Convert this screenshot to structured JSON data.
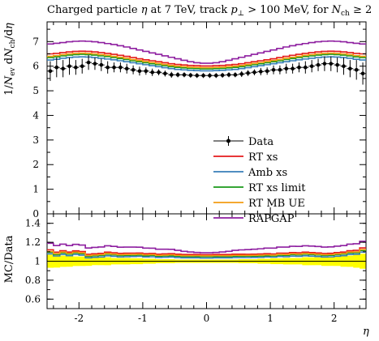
{
  "chart_data": {
    "type": "line",
    "title": "Charged particle η at 7 TeV, track p⊥ > 100 MeV, for Nch ≥ 2",
    "xlabel": "η",
    "ylabel": "1/Nev dNch/dη",
    "ratio_ylabel": "MC/Data",
    "xlim": [
      -2.5,
      2.5
    ],
    "ylim": [
      0,
      7.8
    ],
    "ratio_ylim": [
      0.5,
      1.5
    ],
    "x_ticks": [
      -2,
      -1,
      0,
      1,
      2
    ],
    "y_ticks": [
      0,
      1,
      2,
      3,
      4,
      5,
      6,
      7
    ],
    "ratio_ticks": [
      0.6,
      0.8,
      1,
      1.2,
      1.4
    ],
    "grid": false,
    "legend_position": "center-right",
    "bins_x": [
      -2.45,
      -2.35,
      -2.25,
      -2.15,
      -2.05,
      -1.95,
      -1.85,
      -1.75,
      -1.65,
      -1.55,
      -1.45,
      -1.35,
      -1.25,
      -1.15,
      -1.05,
      -0.95,
      -0.85,
      -0.75,
      -0.65,
      -0.55,
      -0.45,
      -0.35,
      -0.25,
      -0.15,
      -0.05,
      0.05,
      0.15,
      0.25,
      0.35,
      0.45,
      0.55,
      0.65,
      0.75,
      0.85,
      0.95,
      1.05,
      1.15,
      1.25,
      1.35,
      1.45,
      1.55,
      1.65,
      1.75,
      1.85,
      1.95,
      2.05,
      2.15,
      2.25,
      2.35,
      2.45
    ],
    "data": {
      "name": "Data",
      "color": "#000000",
      "y": [
        5.8,
        5.95,
        5.9,
        6.0,
        5.95,
        6.0,
        6.15,
        6.1,
        6.05,
        5.95,
        5.95,
        5.95,
        5.9,
        5.85,
        5.8,
        5.8,
        5.75,
        5.75,
        5.7,
        5.65,
        5.65,
        5.65,
        5.63,
        5.62,
        5.62,
        5.62,
        5.62,
        5.63,
        5.65,
        5.65,
        5.68,
        5.72,
        5.75,
        5.78,
        5.8,
        5.85,
        5.85,
        5.9,
        5.9,
        5.95,
        5.95,
        6.0,
        6.05,
        6.1,
        6.1,
        6.05,
        6.0,
        5.9,
        5.85,
        5.7
      ],
      "err": [
        0.4,
        0.4,
        0.35,
        0.35,
        0.3,
        0.3,
        0.3,
        0.25,
        0.25,
        0.25,
        0.2,
        0.2,
        0.2,
        0.18,
        0.18,
        0.15,
        0.15,
        0.12,
        0.12,
        0.12,
        0.1,
        0.1,
        0.1,
        0.1,
        0.1,
        0.1,
        0.1,
        0.1,
        0.1,
        0.1,
        0.12,
        0.12,
        0.12,
        0.15,
        0.15,
        0.18,
        0.18,
        0.2,
        0.2,
        0.2,
        0.25,
        0.25,
        0.25,
        0.3,
        0.3,
        0.3,
        0.35,
        0.35,
        0.4,
        0.45
      ]
    },
    "series": [
      {
        "name": "RT xs",
        "color": "#e41a1c",
        "y": [
          6.5,
          6.52,
          6.55,
          6.58,
          6.6,
          6.61,
          6.6,
          6.58,
          6.55,
          6.52,
          6.48,
          6.44,
          6.4,
          6.35,
          6.3,
          6.26,
          6.22,
          6.18,
          6.14,
          6.1,
          6.07,
          6.05,
          6.03,
          6.02,
          6.01,
          6.01,
          6.02,
          6.03,
          6.05,
          6.07,
          6.1,
          6.14,
          6.18,
          6.22,
          6.26,
          6.3,
          6.35,
          6.4,
          6.44,
          6.48,
          6.52,
          6.55,
          6.58,
          6.6,
          6.61,
          6.6,
          6.58,
          6.55,
          6.52,
          6.5
        ]
      },
      {
        "name": "Amb xs",
        "color": "#377eb8",
        "y": [
          6.25,
          6.28,
          6.32,
          6.35,
          6.37,
          6.38,
          6.37,
          6.35,
          6.32,
          6.29,
          6.26,
          6.22,
          6.18,
          6.14,
          6.1,
          6.06,
          6.02,
          5.98,
          5.94,
          5.9,
          5.87,
          5.85,
          5.83,
          5.82,
          5.81,
          5.81,
          5.82,
          5.83,
          5.85,
          5.87,
          5.9,
          5.94,
          5.98,
          6.02,
          6.06,
          6.1,
          6.14,
          6.18,
          6.22,
          6.26,
          6.29,
          6.32,
          6.35,
          6.37,
          6.38,
          6.37,
          6.35,
          6.32,
          6.28,
          6.25
        ]
      },
      {
        "name": "RT xs limit",
        "color": "#1a9a1a",
        "y": [
          6.35,
          6.38,
          6.42,
          6.45,
          6.47,
          6.48,
          6.47,
          6.45,
          6.42,
          6.39,
          6.35,
          6.31,
          6.27,
          6.22,
          6.18,
          6.14,
          6.1,
          6.06,
          6.02,
          5.98,
          5.95,
          5.93,
          5.91,
          5.9,
          5.89,
          5.89,
          5.9,
          5.91,
          5.93,
          5.95,
          5.98,
          6.02,
          6.06,
          6.1,
          6.14,
          6.18,
          6.22,
          6.27,
          6.31,
          6.35,
          6.39,
          6.42,
          6.45,
          6.47,
          6.48,
          6.47,
          6.45,
          6.42,
          6.38,
          6.35
        ]
      },
      {
        "name": "RT MB UE",
        "color": "#f39c12",
        "y": [
          6.4,
          6.43,
          6.47,
          6.5,
          6.52,
          6.53,
          6.52,
          6.5,
          6.47,
          6.44,
          6.4,
          6.36,
          6.32,
          6.27,
          6.23,
          6.19,
          6.15,
          6.11,
          6.07,
          6.03,
          6.0,
          5.98,
          5.96,
          5.95,
          5.94,
          5.94,
          5.95,
          5.96,
          5.98,
          6.0,
          6.03,
          6.07,
          6.11,
          6.15,
          6.19,
          6.23,
          6.27,
          6.32,
          6.36,
          6.4,
          6.44,
          6.47,
          6.5,
          6.52,
          6.53,
          6.52,
          6.5,
          6.47,
          6.43,
          6.4
        ]
      },
      {
        "name": "RAPGAP",
        "color": "#8e1fa0",
        "y": [
          6.9,
          6.93,
          6.96,
          6.99,
          7.01,
          7.02,
          7.01,
          6.99,
          6.96,
          6.92,
          6.88,
          6.83,
          6.78,
          6.72,
          6.66,
          6.6,
          6.54,
          6.48,
          6.42,
          6.36,
          6.3,
          6.24,
          6.18,
          6.14,
          6.12,
          6.12,
          6.14,
          6.18,
          6.24,
          6.3,
          6.36,
          6.42,
          6.48,
          6.54,
          6.6,
          6.66,
          6.72,
          6.78,
          6.83,
          6.88,
          6.92,
          6.96,
          6.99,
          7.01,
          7.02,
          7.01,
          6.99,
          6.96,
          6.93,
          6.9
        ]
      }
    ]
  }
}
